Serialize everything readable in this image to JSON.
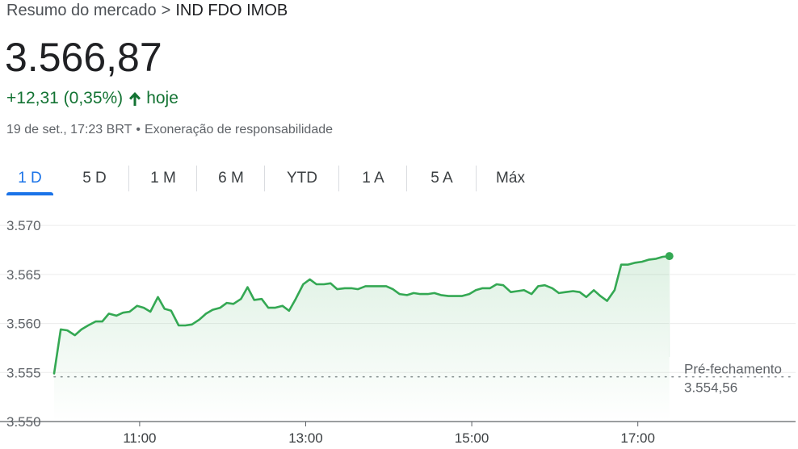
{
  "breadcrumb": {
    "parent": "Resumo do mercado",
    "separator": ">",
    "current": "IND FDO IMOB"
  },
  "quote": {
    "price": "3.566,87",
    "change": "+12,31 (0,35%)",
    "period": "hoje",
    "timestamp": "19 de set., 17:23 BRT",
    "disclaimer": "Exoneração de responsabilidade"
  },
  "tabs": [
    {
      "label": "1 D",
      "active": true
    },
    {
      "label": "5 D"
    },
    {
      "label": "1 M"
    },
    {
      "label": "6 M"
    },
    {
      "label": "YTD"
    },
    {
      "label": "1 A"
    },
    {
      "label": "5 A"
    },
    {
      "label": "Máx"
    }
  ],
  "colors": {
    "up": "#137333",
    "line": "#34a853",
    "accent": "#1a73e8",
    "text": "#202124",
    "muted": "#5f6368"
  },
  "icons": {
    "change_direction": "arrow-up-icon"
  },
  "chart_data": {
    "type": "area",
    "x_unit": "time of day (BRT, decimal hours)",
    "x_range": [
      9.97,
      18.9
    ],
    "ylim": [
      3550,
      3571
    ],
    "yticks": [
      3550,
      3555,
      3560,
      3565,
      3570
    ],
    "ytick_labels": [
      "3.550",
      "3.555",
      "3.560",
      "3.565",
      "3.570"
    ],
    "xticks": [
      11,
      13,
      15,
      17
    ],
    "xtick_labels": [
      "11:00",
      "13:00",
      "15:00",
      "17:00"
    ],
    "grid": true,
    "reference": {
      "label": "Pré-fechamento",
      "value": 3554.56,
      "value_label": "3.554,56"
    },
    "series": [
      {
        "x": [
          9.97,
          10.05,
          10.13,
          10.22,
          10.3,
          10.38,
          10.47,
          10.55,
          10.63,
          10.72,
          10.8,
          10.88,
          10.97,
          11.05,
          11.13,
          11.22,
          11.3,
          11.38,
          11.47,
          11.55,
          11.63,
          11.72,
          11.8,
          11.88,
          11.97,
          12.05,
          12.13,
          12.22,
          12.3,
          12.38,
          12.47,
          12.55,
          12.63,
          12.72,
          12.8,
          12.88,
          12.97,
          13.05,
          13.13,
          13.22,
          13.3,
          13.38,
          13.47,
          13.55,
          13.63,
          13.72,
          13.8,
          13.88,
          13.97,
          14.05,
          14.13,
          14.22,
          14.3,
          14.38,
          14.47,
          14.55,
          14.63,
          14.72,
          14.8,
          14.88,
          14.97,
          15.05,
          15.13,
          15.22,
          15.3,
          15.38,
          15.47,
          15.55,
          15.63,
          15.72,
          15.8,
          15.88,
          15.97,
          16.05,
          16.13,
          16.22,
          16.3,
          16.38,
          16.47,
          16.55,
          16.63,
          16.72,
          16.8,
          16.88,
          16.97,
          17.05,
          17.13,
          17.22,
          17.3,
          17.38
        ],
        "y": [
          3554.9,
          3559.4,
          3559.3,
          3558.8,
          3559.4,
          3559.8,
          3560.2,
          3560.2,
          3561.0,
          3560.8,
          3561.1,
          3561.2,
          3561.8,
          3561.6,
          3561.2,
          3562.7,
          3561.5,
          3561.3,
          3559.8,
          3559.8,
          3559.9,
          3560.4,
          3561.0,
          3561.4,
          3561.6,
          3562.1,
          3562.0,
          3562.5,
          3563.7,
          3562.4,
          3562.5,
          3561.6,
          3561.6,
          3561.8,
          3561.3,
          3562.5,
          3564.0,
          3564.5,
          3564.0,
          3564.0,
          3564.1,
          3563.5,
          3563.6,
          3563.6,
          3563.5,
          3563.8,
          3563.8,
          3563.8,
          3563.8,
          3563.5,
          3563.0,
          3562.9,
          3563.1,
          3563.0,
          3563.0,
          3563.1,
          3562.9,
          3562.8,
          3562.8,
          3562.8,
          3563.0,
          3563.4,
          3563.6,
          3563.6,
          3564.0,
          3563.9,
          3563.2,
          3563.3,
          3563.4,
          3563.0,
          3563.8,
          3563.9,
          3563.6,
          3563.1,
          3563.2,
          3563.3,
          3563.2,
          3562.7,
          3563.4,
          3562.8,
          3562.3,
          3563.4,
          3566.0,
          3566.0,
          3566.2,
          3566.3,
          3566.5,
          3566.6,
          3566.8,
          3566.87
        ]
      }
    ]
  }
}
